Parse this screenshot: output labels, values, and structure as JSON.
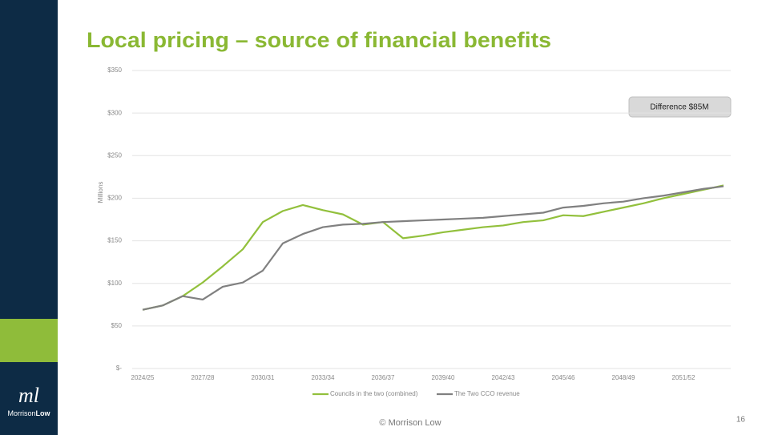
{
  "chart_data": {
    "type": "line",
    "title": "Local pricing – source of financial benefits",
    "y_label": "Millions",
    "annotation": "Difference $85M",
    "categories": [
      "2024/25",
      null,
      null,
      "2027/28",
      null,
      null,
      "2030/31",
      null,
      null,
      "2033/34",
      null,
      null,
      "2036/37",
      null,
      null,
      "2039/40",
      null,
      null,
      "2042/43",
      null,
      null,
      "2045/46",
      null,
      null,
      "2048/49",
      null,
      null,
      "2051/52",
      null,
      null
    ],
    "series": [
      {
        "name": "Councils in the two (combined)",
        "color": "#92c03c",
        "values": [
          69,
          74,
          85,
          101,
          120,
          140,
          172,
          185,
          192,
          186,
          181,
          169,
          172,
          153,
          156,
          160,
          163,
          166,
          168,
          172,
          174,
          180,
          179,
          184,
          189,
          194,
          200,
          205,
          210,
          215
        ]
      },
      {
        "name": "The Two CCO revenue",
        "color": "#808080",
        "values": [
          69,
          74,
          85,
          81,
          96,
          101,
          115,
          147,
          158,
          166,
          169,
          170,
          172,
          173,
          174,
          175,
          176,
          177,
          179,
          181,
          183,
          189,
          191,
          194,
          196,
          200,
          203,
          207,
          211,
          214
        ]
      }
    ],
    "ylim": [
      0,
      350
    ],
    "yticks": [
      {
        "value": 0,
        "label": "$-"
      },
      {
        "value": 50,
        "label": "$50"
      },
      {
        "value": 100,
        "label": "$100"
      },
      {
        "value": 150,
        "label": "$150"
      },
      {
        "value": 200,
        "label": "$200"
      },
      {
        "value": 250,
        "label": "$250"
      },
      {
        "value": 300,
        "label": "$300"
      },
      {
        "value": 350,
        "label": "$350"
      }
    ],
    "grid": true,
    "legend": "bottom"
  },
  "slide": {
    "footer": "© Morrison Low",
    "page_number": "16",
    "logo": [
      "Morrison",
      "Low"
    ]
  }
}
